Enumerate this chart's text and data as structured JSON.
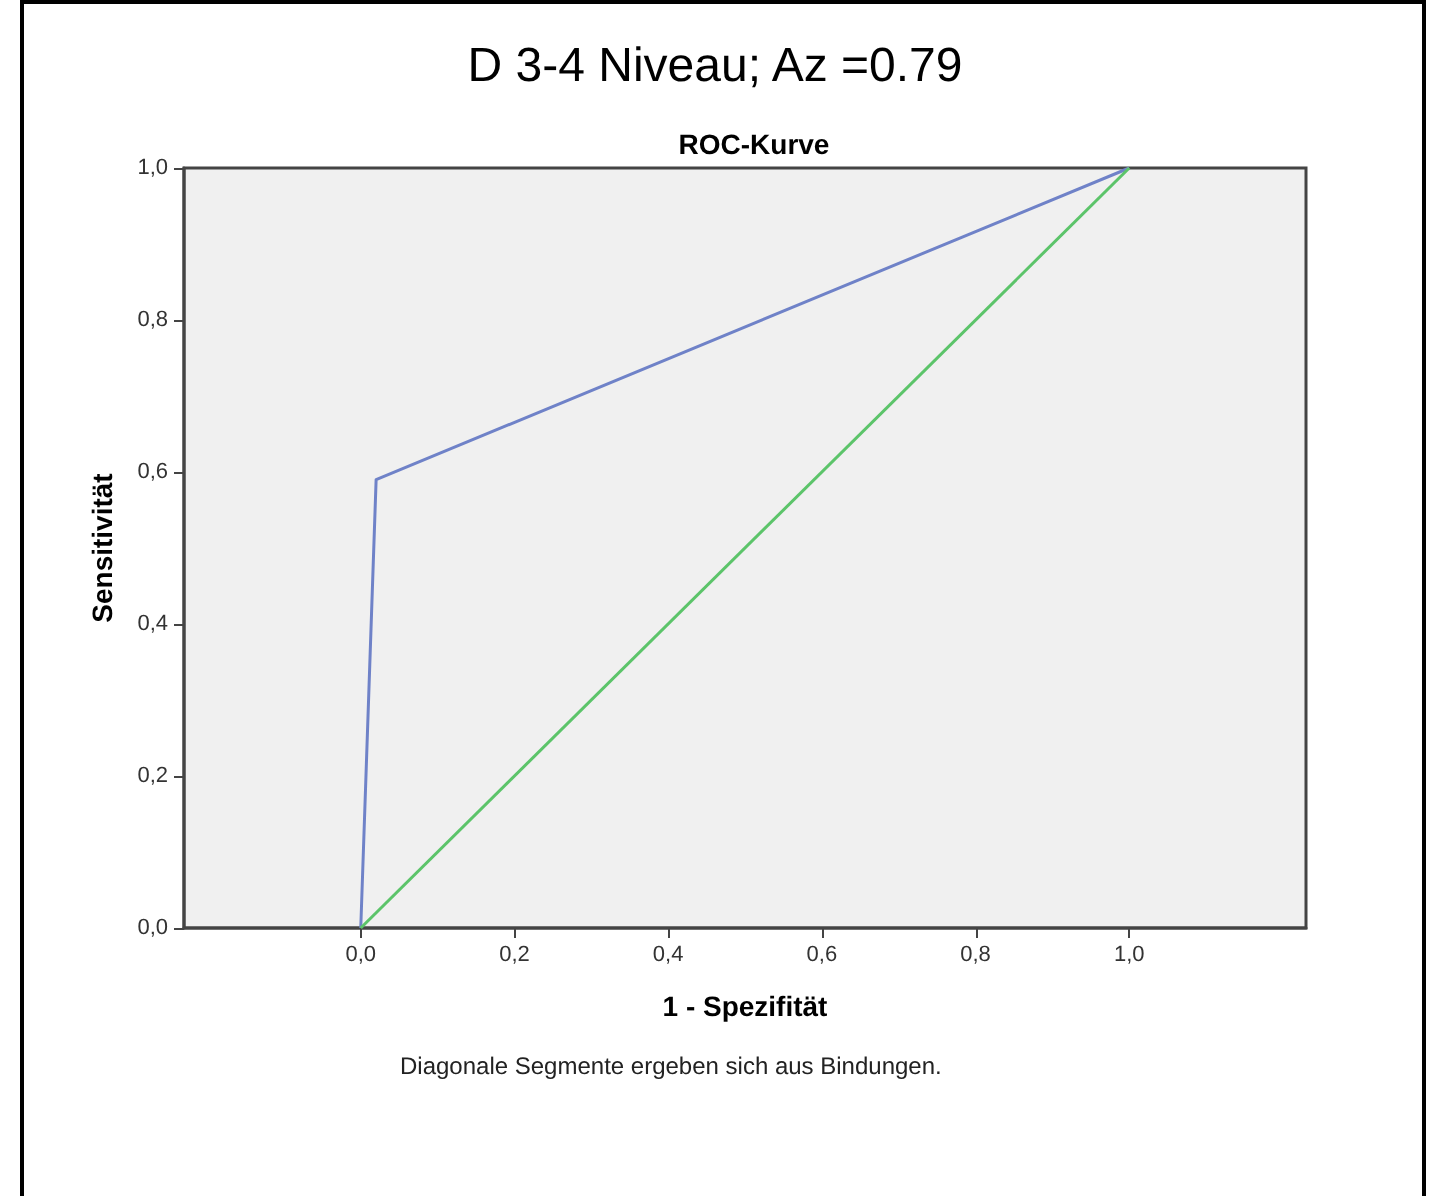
{
  "chart_data": {
    "type": "line",
    "title": "D 3-4 Niveau; Az =0.79",
    "subtitle": "ROC-Kurve",
    "xlabel": "1 - Spezifität",
    "ylabel": "Sensitivität",
    "annotations": [
      "Diagonale Segmente ergeben sich aus Bindungen."
    ],
    "series": [
      {
        "color": "#6f82c8",
        "x": [
          0,
          0.02,
          1
        ],
        "values": [
          0,
          0.59,
          1
        ]
      },
      {
        "color": "#5cc46a",
        "x": [
          0,
          1
        ],
        "values": [
          0,
          1
        ]
      }
    ],
    "xlim": [
      -0.23,
      1.23
    ],
    "ylim": [
      0,
      1
    ],
    "xticks": [
      {
        "value": 0,
        "label": "0,0"
      },
      {
        "value": 0.2,
        "label": "0,2"
      },
      {
        "value": 0.4,
        "label": "0,4"
      },
      {
        "value": 0.6,
        "label": "0,6"
      },
      {
        "value": 0.8,
        "label": "0,8"
      },
      {
        "value": 1,
        "label": "1,0"
      }
    ],
    "yticks": [
      {
        "value": 0,
        "label": "0,0"
      },
      {
        "value": 0.2,
        "label": "0,2"
      },
      {
        "value": 0.4,
        "label": "0,4"
      },
      {
        "value": 0.6,
        "label": "0,6"
      },
      {
        "value": 0.8,
        "label": "0,8"
      },
      {
        "value": 1,
        "label": "1,0"
      }
    ],
    "grid": false,
    "marker": "none",
    "line_style": "solid"
  }
}
